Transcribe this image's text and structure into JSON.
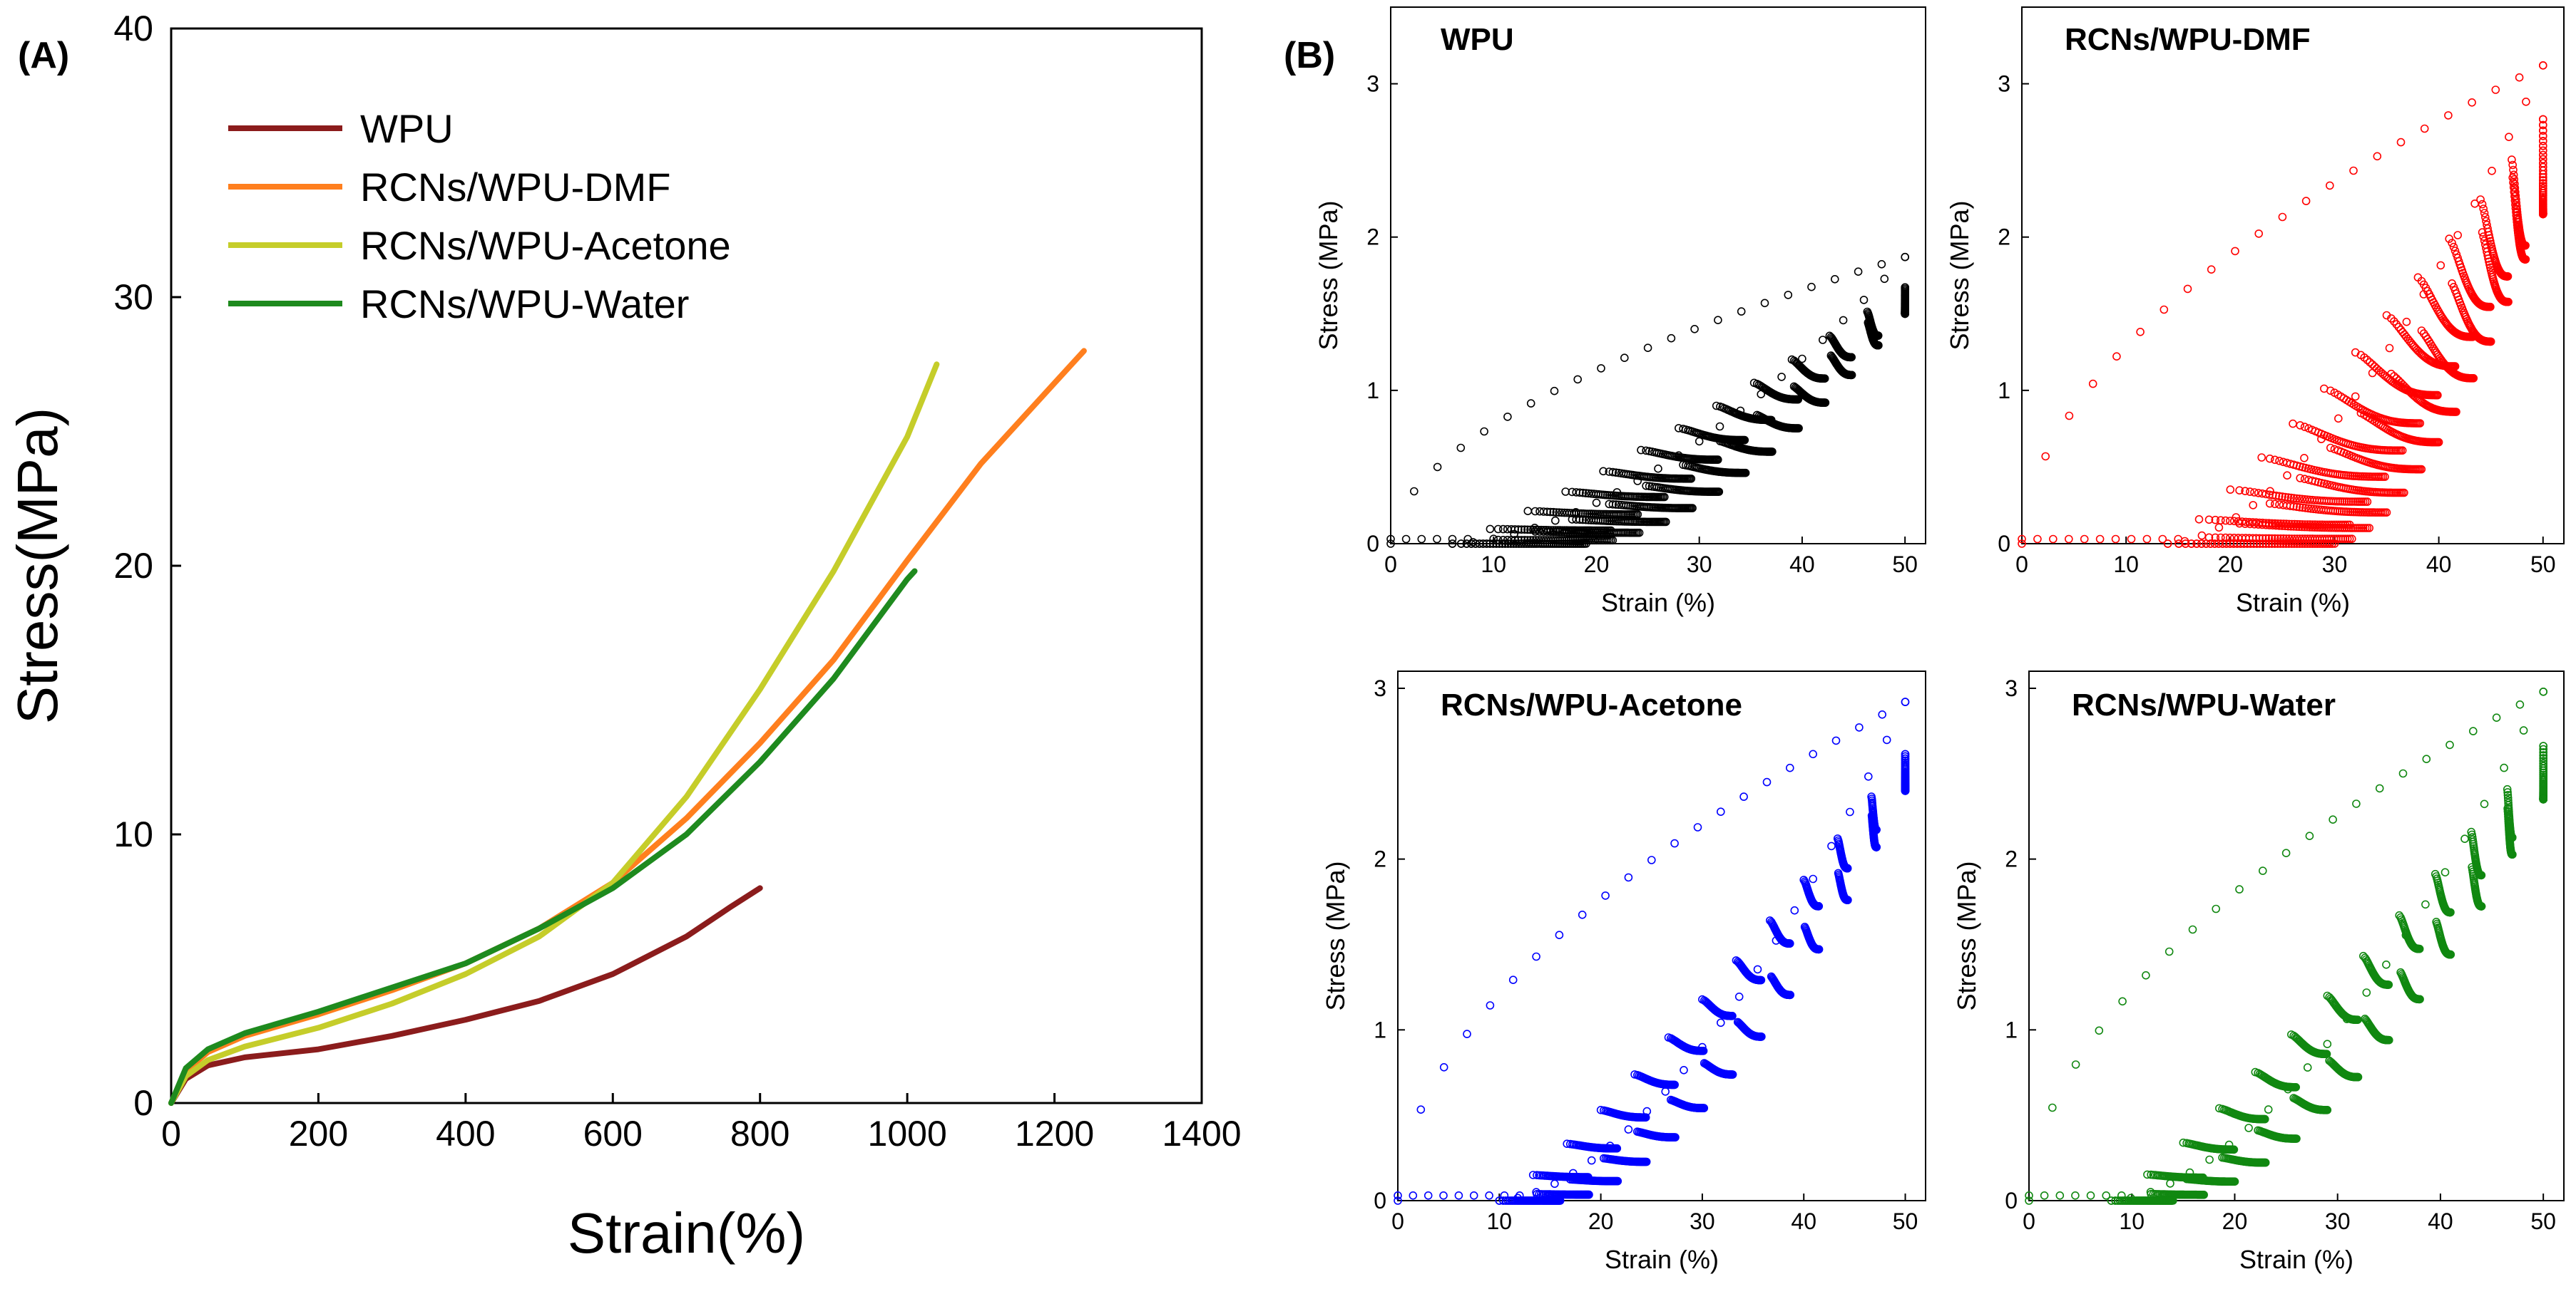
{
  "figure": {
    "panel_a_label": "(A)",
    "panel_b_label": "(B)"
  },
  "chart_data": [
    {
      "id": "A",
      "type": "line",
      "xlabel": "Strain(%)",
      "ylabel": "Stress(MPa)",
      "xlim": [
        0,
        1400
      ],
      "ylim": [
        0,
        40
      ],
      "x_ticks": [
        0,
        200,
        400,
        600,
        800,
        1000,
        1200,
        1400
      ],
      "y_ticks": [
        0,
        10,
        20,
        30,
        40
      ],
      "grid": false,
      "legend_position": "top-left",
      "series": [
        {
          "name": "WPU",
          "color": "#8b1c1c",
          "points": [
            [
              0,
              0
            ],
            [
              20,
              0.9
            ],
            [
              50,
              1.4
            ],
            [
              100,
              1.7
            ],
            [
              200,
              2.0
            ],
            [
              300,
              2.5
            ],
            [
              400,
              3.1
            ],
            [
              500,
              3.8
            ],
            [
              600,
              4.8
            ],
            [
              700,
              6.2
            ],
            [
              760,
              7.3
            ],
            [
              800,
              8.0
            ]
          ]
        },
        {
          "name": "RCNs/WPU-DMF",
          "color": "#ff7f1e",
          "points": [
            [
              0,
              0
            ],
            [
              20,
              1.2
            ],
            [
              50,
              1.9
            ],
            [
              100,
              2.5
            ],
            [
              200,
              3.3
            ],
            [
              300,
              4.2
            ],
            [
              400,
              5.2
            ],
            [
              500,
              6.5
            ],
            [
              600,
              8.2
            ],
            [
              700,
              10.6
            ],
            [
              800,
              13.4
            ],
            [
              900,
              16.5
            ],
            [
              1000,
              20.2
            ],
            [
              1100,
              23.8
            ],
            [
              1200,
              26.8
            ],
            [
              1240,
              28.0
            ]
          ]
        },
        {
          "name": "RCNs/WPU-Acetone",
          "color": "#c5cd2a",
          "points": [
            [
              0,
              0
            ],
            [
              20,
              1.0
            ],
            [
              50,
              1.6
            ],
            [
              100,
              2.1
            ],
            [
              200,
              2.8
            ],
            [
              300,
              3.7
            ],
            [
              400,
              4.8
            ],
            [
              500,
              6.2
            ],
            [
              600,
              8.2
            ],
            [
              700,
              11.4
            ],
            [
              800,
              15.4
            ],
            [
              900,
              19.8
            ],
            [
              1000,
              24.8
            ],
            [
              1040,
              27.5
            ]
          ]
        },
        {
          "name": "RCNs/WPU-Water",
          "color": "#1e8a1e",
          "points": [
            [
              0,
              0
            ],
            [
              20,
              1.3
            ],
            [
              50,
              2.0
            ],
            [
              100,
              2.6
            ],
            [
              200,
              3.4
            ],
            [
              300,
              4.3
            ],
            [
              400,
              5.2
            ],
            [
              500,
              6.5
            ],
            [
              600,
              8.0
            ],
            [
              700,
              10.0
            ],
            [
              800,
              12.7
            ],
            [
              900,
              15.8
            ],
            [
              1000,
              19.5
            ],
            [
              1010,
              19.8
            ]
          ]
        }
      ]
    },
    {
      "id": "B1",
      "type": "scatter",
      "title": "WPU",
      "xlabel": "Strain (%)",
      "ylabel": "Stress (MPa)",
      "xlim": [
        0,
        52
      ],
      "ylim": [
        0,
        3.5
      ],
      "x_ticks": [
        0,
        10,
        20,
        30,
        40,
        50
      ],
      "y_ticks": [
        0,
        1,
        2,
        3
      ],
      "color": "#000000",
      "cycles": 50,
      "first_loading_peak": 1.87,
      "last_cycle_peak": 1.5,
      "first_residual_strain": 6,
      "last_residual_strain": 19
    },
    {
      "id": "B2",
      "type": "scatter",
      "title": "RCNs/WPU-DMF",
      "xlabel": "Strain (%)",
      "ylabel": "Stress (MPa)",
      "xlim": [
        0,
        52
      ],
      "ylim": [
        0,
        3.5
      ],
      "x_ticks": [
        0,
        10,
        20,
        30,
        40,
        50
      ],
      "y_ticks": [
        0,
        1,
        2,
        3
      ],
      "color": "#ff0000",
      "cycles": 50,
      "first_loading_peak": 3.12,
      "last_cycle_peak": 2.15,
      "first_residual_strain": 14,
      "last_residual_strain": 30
    },
    {
      "id": "B3",
      "type": "scatter",
      "title": "RCNs/WPU-Acetone",
      "xlabel": "Strain (%)",
      "ylabel": "Stress (MPa)",
      "xlim": [
        0,
        52
      ],
      "ylim": [
        0,
        3.1
      ],
      "x_ticks": [
        0,
        10,
        20,
        30,
        40,
        50
      ],
      "y_ticks": [
        0,
        1,
        2,
        3
      ],
      "color": "#0000ff",
      "cycles": 50,
      "first_loading_peak": 2.92,
      "last_cycle_peak": 2.4,
      "first_residual_strain": 10,
      "last_residual_strain": 16
    },
    {
      "id": "B4",
      "type": "scatter",
      "title": "RCNs/WPU-Water",
      "xlabel": "Strain (%)",
      "ylabel": "Stress (MPa)",
      "xlim": [
        0,
        52
      ],
      "ylim": [
        0,
        3.1
      ],
      "x_ticks": [
        0,
        10,
        20,
        30,
        40,
        50
      ],
      "y_ticks": [
        0,
        1,
        2,
        3
      ],
      "color": "#118811",
      "cycles": 50,
      "first_loading_peak": 2.98,
      "last_cycle_peak": 2.35,
      "first_residual_strain": 8,
      "last_residual_strain": 14
    }
  ]
}
